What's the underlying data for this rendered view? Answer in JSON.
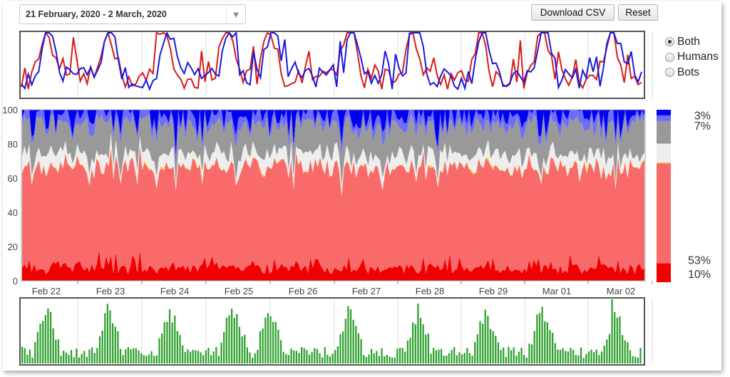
{
  "date_range": {
    "label": "21 February, 2020 - 2 March, 2020"
  },
  "toolbar": {
    "download_label": "Download CSV",
    "reset_label": "Reset"
  },
  "filter": {
    "options": [
      "Both",
      "Humans",
      "Bots"
    ],
    "selected": "Both"
  },
  "colors": {
    "humans_line": "#d91a1a",
    "bots_line": "#1a1add",
    "dark_blue": "#0000ee",
    "light_blue": "#6d6dfb",
    "gray": "#999999",
    "light_gray": "#eeeeee",
    "yellow": "#f5c518",
    "salmon": "#f96b6b",
    "red": "#f00000",
    "bar_green": "#2ca02c"
  },
  "chart_data": [
    {
      "type": "line",
      "role": "overview",
      "series": [
        {
          "color_key": "humans_line"
        },
        {
          "color_key": "bots_line"
        }
      ],
      "y_grid": false
    },
    {
      "type": "area",
      "role": "composition",
      "x_ticks": [
        "Feb 22",
        "Feb 23",
        "Feb 24",
        "Feb 25",
        "Feb 26",
        "Feb 27",
        "Feb 28",
        "Feb 29",
        "Mar 01",
        "Mar 02"
      ],
      "y_ticks": [
        0,
        20,
        40,
        60,
        80,
        100
      ],
      "ylim": [
        0,
        100
      ],
      "stack_order_bottom_up": [
        "red",
        "salmon",
        "yellow",
        "light_gray",
        "gray",
        "light_blue",
        "dark_blue"
      ],
      "legend": {
        "position": "right",
        "stack": [
          {
            "color_key": "dark_blue",
            "value": 3
          },
          {
            "color_key": "light_blue",
            "value": 3
          },
          {
            "color_key": "gray",
            "value": 12
          },
          {
            "color_key": "light_gray",
            "value": 10
          },
          {
            "color_key": "yellow",
            "value": 0.4
          },
          {
            "color_key": "salmon",
            "value": 53
          },
          {
            "color_key": "red",
            "value": 10
          }
        ],
        "labels": [
          {
            "text": "3%",
            "at": 3
          },
          {
            "text": "7%",
            "at": 9
          },
          {
            "text": "53%",
            "at": 87
          },
          {
            "text": "10%",
            "at": 95
          }
        ]
      }
    },
    {
      "type": "bar",
      "role": "volume",
      "color_key": "bar_green",
      "count": 240
    }
  ]
}
